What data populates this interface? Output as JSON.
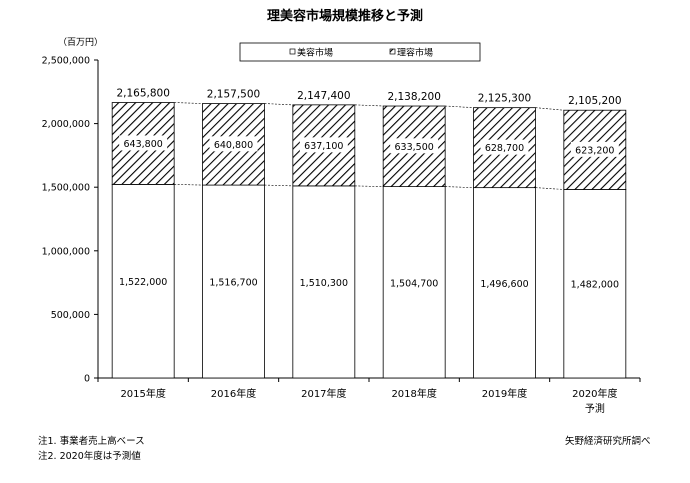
{
  "chart_data": {
    "type": "bar",
    "stacked": true,
    "title": "理美容市場規模推移と予測",
    "unit_label": "（百万円）",
    "categories": [
      "2015年度",
      "2016年度",
      "2017年度",
      "2018年度",
      "2019年度",
      "2020年度"
    ],
    "category_sublabels": [
      "",
      "",
      "",
      "",
      "",
      "予測"
    ],
    "series": [
      {
        "name": "美容市場",
        "values": [
          1522000,
          1516700,
          1510300,
          1504700,
          1496600,
          1482000
        ],
        "labels": [
          "1,522,000",
          "1,516,700",
          "1,510,300",
          "1,504,700",
          "1,496,600",
          "1,482,000"
        ],
        "fill": "#ffffff"
      },
      {
        "name": "理容市場",
        "values": [
          643800,
          640800,
          637100,
          633500,
          628700,
          623200
        ],
        "labels": [
          "643,800",
          "640,800",
          "637,100",
          "633,500",
          "628,700",
          "623,200"
        ],
        "fill": "hatch"
      }
    ],
    "totals": [
      2165800,
      2157500,
      2147400,
      2138200,
      2125300,
      2105200
    ],
    "total_labels": [
      "2,165,800",
      "2,157,500",
      "2,147,400",
      "2,138,200",
      "2,125,300",
      "2,105,200"
    ],
    "y_ticks": [
      0,
      500000,
      1000000,
      1500000,
      2000000,
      2500000
    ],
    "y_tick_labels": [
      "0",
      "500,000",
      "1,000,000",
      "1,500,000",
      "2,000,000",
      "2,500,000"
    ],
    "ylim": [
      0,
      2500000
    ],
    "legend_position": "top-center",
    "grid": false,
    "series_lines": true
  },
  "notes": {
    "note1": "注1. 事業者売上高ベース",
    "note2": "注2. 2020年度は予測値",
    "source": "矢野経済研究所調べ"
  }
}
